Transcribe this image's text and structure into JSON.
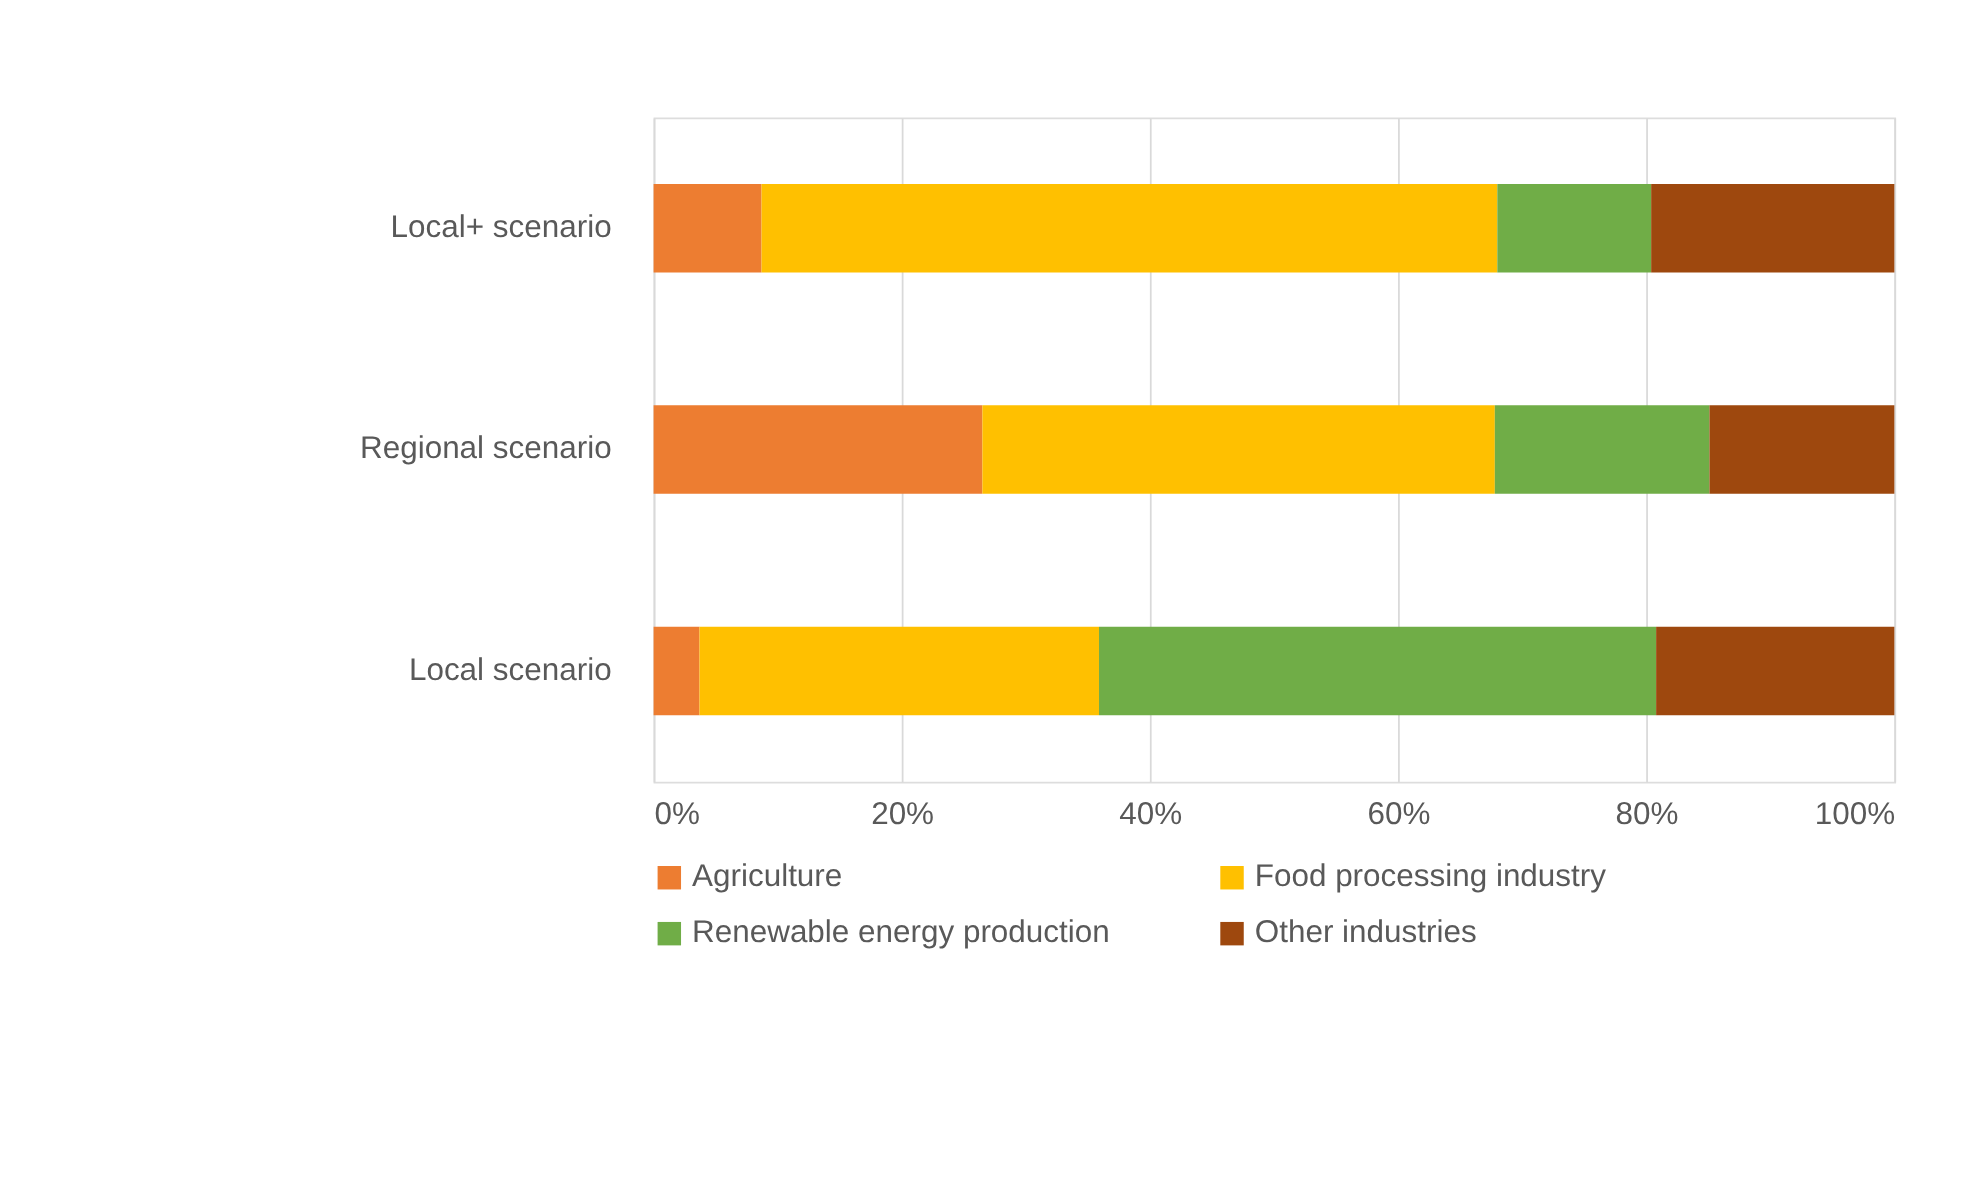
{
  "chart_data": {
    "type": "bar",
    "orientation": "horizontal",
    "stacked": true,
    "categories": [
      "Local+ scenario",
      "Regional scenario",
      "Local scenario"
    ],
    "series": [
      {
        "name": "Agriculture",
        "color": "#ed7d31",
        "values": [
          8.7,
          26.5,
          3.7
        ]
      },
      {
        "name": "Food processing industry",
        "color": "#ffc000",
        "values": [
          59.3,
          41.3,
          32.2
        ]
      },
      {
        "name": "Renewable energy production",
        "color": "#70ad47",
        "values": [
          12.4,
          17.3,
          44.9
        ]
      },
      {
        "name": "Other industries",
        "color": "#9e480e",
        "values": [
          19.6,
          14.9,
          19.2
        ]
      }
    ],
    "xlim": [
      0,
      100
    ],
    "xticks": [
      {
        "value": 0,
        "label": "0%"
      },
      {
        "value": 20,
        "label": "20%"
      },
      {
        "value": 40,
        "label": "40%"
      },
      {
        "value": 60,
        "label": "60%"
      },
      {
        "value": 80,
        "label": "80%"
      },
      {
        "value": 100,
        "label": "100%"
      }
    ],
    "grid": "x",
    "legend": "bottom"
  }
}
